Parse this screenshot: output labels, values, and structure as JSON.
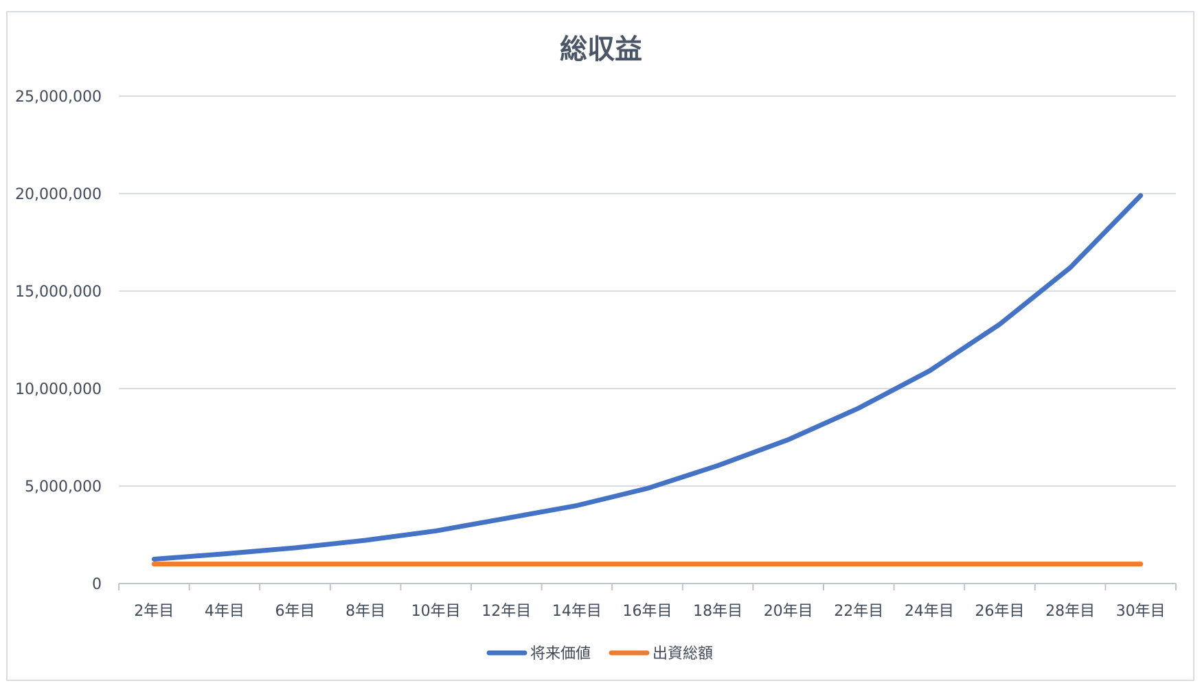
{
  "chart_data": {
    "type": "line",
    "title": "総収益",
    "categories": [
      "2年目",
      "4年目",
      "6年目",
      "8年目",
      "10年目",
      "12年目",
      "14年目",
      "16年目",
      "18年目",
      "20年目",
      "22年目",
      "24年目",
      "26年目",
      "28年目",
      "30年目"
    ],
    "y_ticks": [
      "0",
      "5,000,000",
      "10,000,000",
      "15,000,000",
      "20,000,000",
      "25,000,000"
    ],
    "ylim": [
      0,
      25000000
    ],
    "grid": true,
    "legend_position": "bottom",
    "series": [
      {
        "name": "将来価値",
        "color": "#4472c4",
        "values": [
          1250000,
          1520000,
          1830000,
          2220000,
          2700000,
          3350000,
          4000000,
          4880000,
          6050000,
          7380000,
          9000000,
          10900000,
          13300000,
          16200000,
          19900000
        ]
      },
      {
        "name": "出資総額",
        "color": "#ed7d31",
        "values": [
          1000000,
          1000000,
          1000000,
          1000000,
          1000000,
          1000000,
          1000000,
          1000000,
          1000000,
          1000000,
          1000000,
          1000000,
          1000000,
          1000000,
          1000000
        ]
      }
    ]
  }
}
